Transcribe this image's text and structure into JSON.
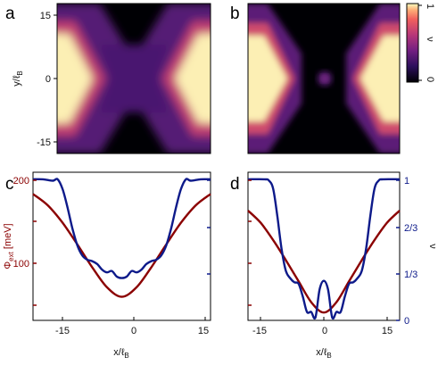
{
  "figure": {
    "panels": [
      "a",
      "b",
      "c",
      "d"
    ],
    "colorbar": {
      "min_label": "0",
      "max_label": "1",
      "label": "ν"
    },
    "heatmap_axes": {
      "ylabel_main": "y/ℓ",
      "ylabel_sub": "B",
      "yticks": [
        "15",
        "0",
        "-15"
      ]
    },
    "line_axes": {
      "xlabel_main": "x/ℓ",
      "xlabel_sub": "B",
      "xticks": [
        "-15",
        "0",
        "15"
      ],
      "left_ylabel_main": "Φ",
      "left_ylabel_sub": "ext",
      "left_ylabel_unit": " [meV]",
      "left_yticks": [
        "200",
        "100"
      ],
      "right_ylabel": "ν",
      "right_yticks": [
        "1",
        "2/3",
        "1/3",
        "0"
      ]
    }
  },
  "colors": {
    "potential": "#8b0000",
    "filling": "#0d1a8a"
  },
  "chart_data": [
    {
      "type": "heatmap",
      "panel": "a",
      "description_values": "filling factor ν map",
      "xlim": [
        -18,
        18
      ],
      "ylim": [
        -18,
        18
      ],
      "clim": [
        0,
        1
      ],
      "ylabel": "y/ℓB",
      "yticks": [
        15,
        0,
        -15
      ]
    },
    {
      "type": "heatmap",
      "panel": "b",
      "xlim": [
        -18,
        18
      ],
      "ylim": [
        -18,
        18
      ],
      "clim": [
        0,
        1
      ]
    },
    {
      "type": "line",
      "panel": "c",
      "xlim": [
        -18,
        18
      ],
      "xticks": [
        -15,
        0,
        15
      ],
      "xlabel": "x/ℓB",
      "left_ylim": [
        40,
        210
      ],
      "left_ylabel": "Φext [meV]",
      "right_ylim": [
        0,
        1.05
      ],
      "series": [
        {
          "name": "Φext",
          "axis": "left",
          "x": [
            -18,
            -15,
            -12,
            -9,
            -6,
            -3,
            0,
            3,
            6,
            9,
            12,
            15,
            18
          ],
          "y": [
            185,
            172,
            152,
            127,
            101,
            78,
            67,
            78,
            101,
            127,
            152,
            172,
            185
          ]
        },
        {
          "name": "ν",
          "axis": "right",
          "x": [
            -18,
            -16,
            -14,
            -13,
            -12,
            -11,
            -10,
            -9,
            -8,
            -7,
            -6,
            -5,
            -4,
            -3,
            -2,
            -1,
            0,
            1,
            2,
            3,
            4,
            5,
            6,
            7,
            8,
            9,
            10,
            11,
            12,
            13,
            14,
            16,
            18
          ],
          "y": [
            1.0,
            1.0,
            0.99,
            1.0,
            0.93,
            0.8,
            0.65,
            0.53,
            0.46,
            0.43,
            0.42,
            0.4,
            0.36,
            0.34,
            0.35,
            0.31,
            0.3,
            0.31,
            0.35,
            0.34,
            0.36,
            0.4,
            0.42,
            0.43,
            0.46,
            0.53,
            0.65,
            0.8,
            0.93,
            1.0,
            0.99,
            1.0,
            1.0
          ]
        }
      ]
    },
    {
      "type": "line",
      "panel": "d",
      "xlim": [
        -18,
        18
      ],
      "xticks": [
        -15,
        0,
        15
      ],
      "xlabel": "x/ℓB",
      "right_ylim": [
        0,
        1.05
      ],
      "right_yticks": [
        "1",
        "2/3",
        "1/3",
        "0"
      ],
      "right_ylabel": "ν",
      "series": [
        {
          "name": "Φext",
          "axis": "left",
          "x": [
            -18,
            -15,
            -12,
            -9,
            -6,
            -3,
            0,
            3,
            6,
            9,
            12,
            15,
            18
          ],
          "y": [
            166,
            152,
            132,
            109,
            85,
            61,
            49,
            61,
            85,
            109,
            132,
            152,
            166
          ]
        },
        {
          "name": "ν",
          "axis": "right",
          "x": [
            -18,
            -14,
            -13,
            -12,
            -11,
            -10,
            -9,
            -8,
            -7,
            -6,
            -5,
            -4,
            -3,
            -2,
            -1,
            0,
            1,
            2,
            3,
            4,
            5,
            6,
            7,
            8,
            9,
            10,
            11,
            12,
            13,
            14,
            18
          ],
          "y": [
            1.0,
            1.0,
            0.99,
            0.93,
            0.73,
            0.5,
            0.35,
            0.3,
            0.27,
            0.26,
            0.17,
            0.06,
            0.06,
            0.02,
            0.22,
            0.28,
            0.22,
            0.02,
            0.06,
            0.06,
            0.17,
            0.26,
            0.27,
            0.3,
            0.35,
            0.5,
            0.73,
            0.93,
            0.99,
            1.0,
            1.0
          ]
        }
      ]
    }
  ]
}
